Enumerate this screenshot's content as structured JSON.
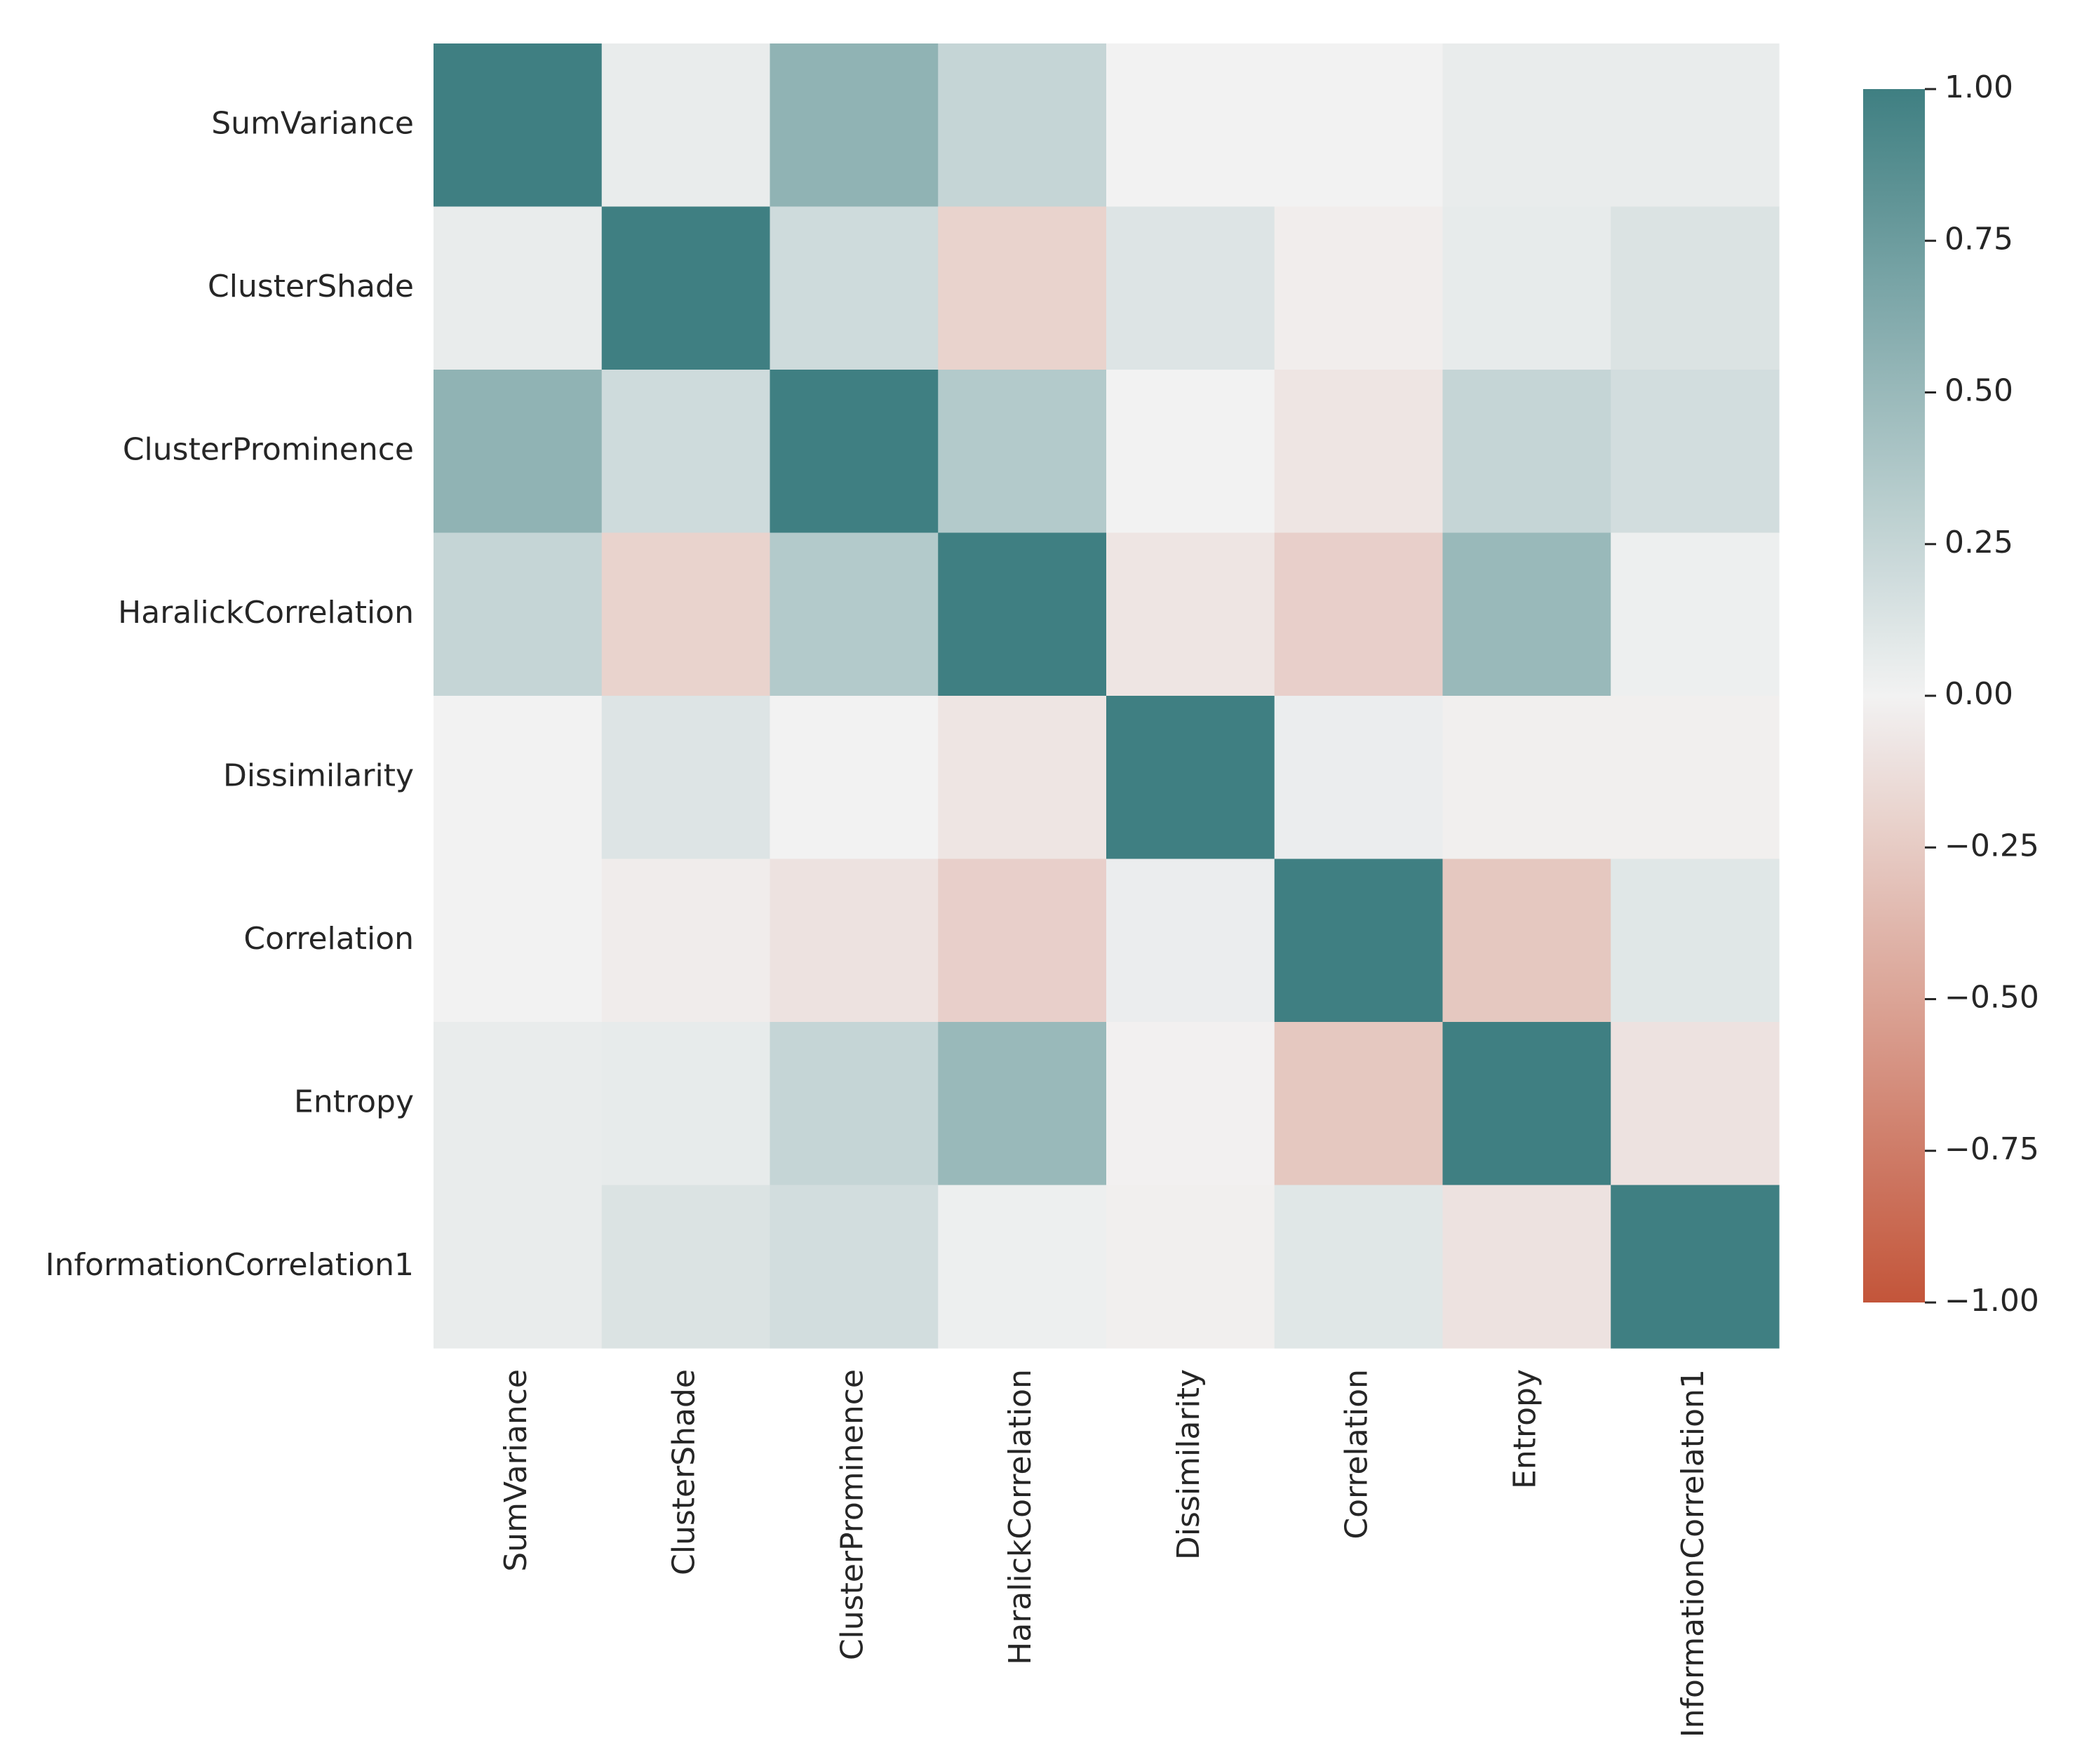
{
  "chart_data": {
    "type": "heatmap",
    "title": "",
    "xlabel": "",
    "ylabel": "",
    "rows": [
      "SumVariance",
      "ClusterShade",
      "ClusterProminence",
      "HaralickCorrelation",
      "Dissimilarity",
      "Correlation",
      "Entropy",
      "InformationCorrelation1"
    ],
    "columns": [
      "SumVariance",
      "ClusterShade",
      "ClusterProminence",
      "HaralickCorrelation",
      "Dissimilarity",
      "Correlation",
      "Entropy",
      "InformationCorrelation1"
    ],
    "values": [
      [
        1.0,
        0.05,
        0.55,
        0.25,
        0.0,
        0.0,
        0.05,
        0.05
      ],
      [
        0.05,
        1.0,
        0.2,
        -0.2,
        0.12,
        -0.03,
        0.06,
        0.13
      ],
      [
        0.55,
        0.2,
        1.0,
        0.35,
        0.0,
        -0.08,
        0.25,
        0.18
      ],
      [
        0.25,
        -0.2,
        0.35,
        1.0,
        -0.08,
        -0.22,
        0.5,
        0.03
      ],
      [
        0.0,
        0.12,
        0.0,
        -0.08,
        1.0,
        0.04,
        -0.02,
        -0.02
      ],
      [
        0.0,
        -0.04,
        -0.1,
        -0.22,
        0.04,
        1.0,
        -0.27,
        0.1
      ],
      [
        0.05,
        0.06,
        0.25,
        0.5,
        -0.01,
        -0.27,
        1.0,
        -0.1
      ],
      [
        0.05,
        0.13,
        0.18,
        0.03,
        -0.02,
        0.1,
        -0.1,
        1.0
      ]
    ],
    "colorbar": {
      "vmin": -1.0,
      "vmax": 1.0,
      "ticks": [
        "1.00",
        "0.75",
        "0.50",
        "0.25",
        "0.00",
        "−0.25",
        "−0.50",
        "−0.75",
        "−1.00"
      ],
      "tick_values": [
        1.0,
        0.75,
        0.5,
        0.25,
        0.0,
        -0.25,
        -0.5,
        -0.75,
        -1.0
      ]
    },
    "colors": {
      "negative": "#c3553a",
      "center": "#f2f2f2",
      "positive": "#3f7f82",
      "text": "#262626"
    }
  }
}
